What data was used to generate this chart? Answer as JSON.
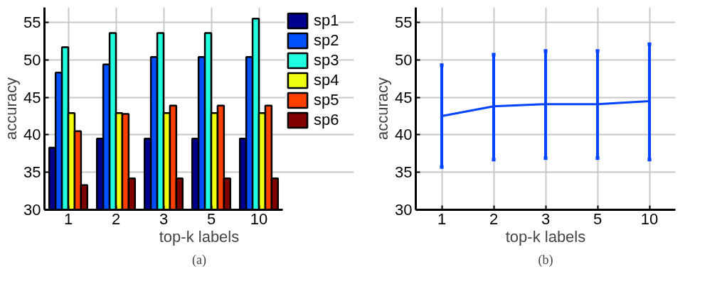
{
  "chart_data": [
    {
      "type": "bar",
      "xlabel": "top-k labels",
      "ylabel": "accuracy",
      "categories": [
        "1",
        "2",
        "3",
        "5",
        "10"
      ],
      "ylim": [
        30,
        57
      ],
      "yticks": [
        30,
        35,
        40,
        45,
        50,
        55
      ],
      "grid": true,
      "legend": "top right",
      "annotations": [
        "(a)"
      ],
      "series": [
        {
          "name": "sp1",
          "color": "#00008f",
          "values": [
            38.3,
            39.5,
            39.5,
            39.5,
            39.5
          ]
        },
        {
          "name": "sp2",
          "color": "#0050ff",
          "values": [
            48.3,
            49.4,
            50.4,
            50.4,
            50.4
          ]
        },
        {
          "name": "sp3",
          "color": "#20ffdf",
          "values": [
            51.7,
            53.6,
            53.6,
            53.6,
            55.5
          ]
        },
        {
          "name": "sp4",
          "color": "#efff10",
          "values": [
            42.9,
            42.9,
            42.9,
            42.9,
            42.9
          ]
        },
        {
          "name": "sp5",
          "color": "#ff4000",
          "values": [
            40.5,
            42.8,
            43.9,
            43.9,
            43.9
          ]
        },
        {
          "name": "sp6",
          "color": "#800000",
          "values": [
            33.3,
            34.2,
            34.2,
            34.2,
            34.2
          ]
        }
      ]
    },
    {
      "type": "line",
      "xlabel": "top-k labels",
      "ylabel": "accuracy",
      "categories": [
        "1",
        "2",
        "3",
        "5",
        "10"
      ],
      "ylim": [
        30,
        57
      ],
      "yticks": [
        30,
        35,
        40,
        45,
        50,
        55
      ],
      "grid": true,
      "marker": "none",
      "line_style": "solid",
      "annotations": [
        "(b)"
      ],
      "series": [
        {
          "color": "#0044ff",
          "values": [
            42.5,
            43.8,
            44.1,
            44.1,
            44.5
          ],
          "errors": [
            [
              35.7,
              49.3
            ],
            [
              36.7,
              50.7
            ],
            [
              36.9,
              51.2
            ],
            [
              36.9,
              51.2
            ],
            [
              36.7,
              52.1
            ]
          ]
        }
      ]
    }
  ]
}
